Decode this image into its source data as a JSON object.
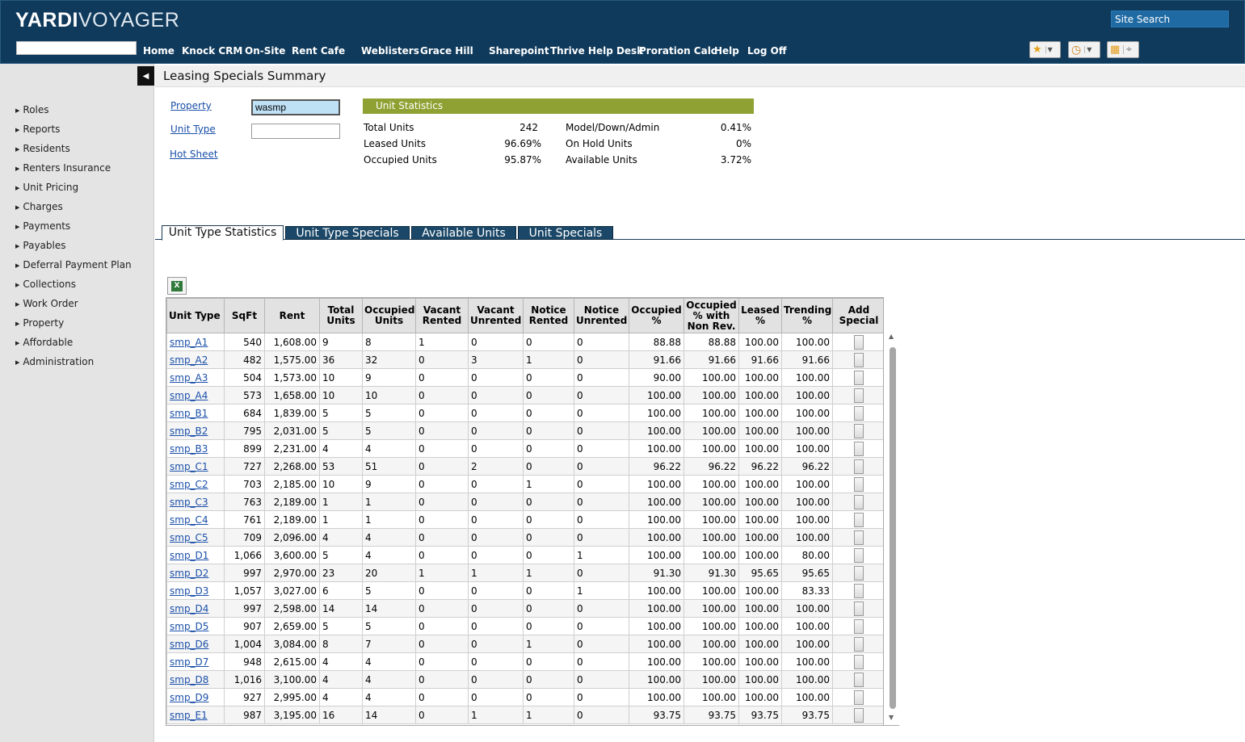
{
  "header": {
    "logo_bold": "YARDI",
    "logo_rest": "VOYAGER",
    "site_search": "Site Search",
    "nav": [
      "Home",
      "Knock CRM",
      "On-Site",
      "Rent Cafe",
      "Weblisters",
      "Grace Hill",
      "Sharepoint",
      "Thrive Help Desk",
      "Proration Calc",
      "Help",
      "Log Off"
    ]
  },
  "sidebar": {
    "items": [
      "Roles",
      "Reports",
      "Residents",
      "Renters Insurance",
      "Unit Pricing",
      "Charges",
      "Payments",
      "Payables",
      "Deferral Payment Plan",
      "Collections",
      "Work Order",
      "Property",
      "Affordable",
      "Administration"
    ]
  },
  "page": {
    "title": "Leasing Specials Summary"
  },
  "form": {
    "property_label": "Property",
    "property_value": "wasmp",
    "unit_type_label": "Unit Type",
    "unit_type_value": "",
    "hot_sheet_label": "Hot Sheet"
  },
  "unit_stats": {
    "heading": "Unit Statistics",
    "left": [
      {
        "label": "Total Units",
        "value": "242"
      },
      {
        "label": "Leased Units",
        "value": "96.69%"
      },
      {
        "label": "Occupied Units",
        "value": "95.87%"
      }
    ],
    "right": [
      {
        "label": "Model/Down/Admin",
        "value": "0.41%"
      },
      {
        "label": "On Hold Units",
        "value": "0%"
      },
      {
        "label": "Available Units",
        "value": "3.72%"
      }
    ]
  },
  "tabs": [
    "Unit Type Statistics",
    "Unit Type Specials",
    "Available Units",
    "Unit Specials"
  ],
  "active_tab": 0,
  "table": {
    "columns": [
      "Unit Type",
      "SqFt",
      "Rent",
      "Total Units",
      "Occupied Units",
      "Vacant Rented",
      "Vacant Unrented",
      "Notice Rented",
      "Notice Unrented",
      "Occupied %",
      "Occupied % with Non Rev.",
      "Leased %",
      "Trending %",
      "Add Special"
    ],
    "rows": [
      [
        "smp_A1",
        "540",
        "1,608.00",
        "9",
        "8",
        "1",
        "0",
        "0",
        "0",
        "88.88",
        "88.88",
        "100.00",
        "100.00"
      ],
      [
        "smp_A2",
        "482",
        "1,575.00",
        "36",
        "32",
        "0",
        "3",
        "1",
        "0",
        "91.66",
        "91.66",
        "91.66",
        "91.66"
      ],
      [
        "smp_A3",
        "504",
        "1,573.00",
        "10",
        "9",
        "0",
        "0",
        "0",
        "0",
        "90.00",
        "100.00",
        "100.00",
        "100.00"
      ],
      [
        "smp_A4",
        "573",
        "1,658.00",
        "10",
        "10",
        "0",
        "0",
        "0",
        "0",
        "100.00",
        "100.00",
        "100.00",
        "100.00"
      ],
      [
        "smp_B1",
        "684",
        "1,839.00",
        "5",
        "5",
        "0",
        "0",
        "0",
        "0",
        "100.00",
        "100.00",
        "100.00",
        "100.00"
      ],
      [
        "smp_B2",
        "795",
        "2,031.00",
        "5",
        "5",
        "0",
        "0",
        "0",
        "0",
        "100.00",
        "100.00",
        "100.00",
        "100.00"
      ],
      [
        "smp_B3",
        "899",
        "2,231.00",
        "4",
        "4",
        "0",
        "0",
        "0",
        "0",
        "100.00",
        "100.00",
        "100.00",
        "100.00"
      ],
      [
        "smp_C1",
        "727",
        "2,268.00",
        "53",
        "51",
        "0",
        "2",
        "0",
        "0",
        "96.22",
        "96.22",
        "96.22",
        "96.22"
      ],
      [
        "smp_C2",
        "703",
        "2,185.00",
        "10",
        "9",
        "0",
        "0",
        "1",
        "0",
        "100.00",
        "100.00",
        "100.00",
        "100.00"
      ],
      [
        "smp_C3",
        "763",
        "2,189.00",
        "1",
        "1",
        "0",
        "0",
        "0",
        "0",
        "100.00",
        "100.00",
        "100.00",
        "100.00"
      ],
      [
        "smp_C4",
        "761",
        "2,189.00",
        "1",
        "1",
        "0",
        "0",
        "0",
        "0",
        "100.00",
        "100.00",
        "100.00",
        "100.00"
      ],
      [
        "smp_C5",
        "709",
        "2,096.00",
        "4",
        "4",
        "0",
        "0",
        "0",
        "0",
        "100.00",
        "100.00",
        "100.00",
        "100.00"
      ],
      [
        "smp_D1",
        "1,066",
        "3,600.00",
        "5",
        "4",
        "0",
        "0",
        "0",
        "1",
        "100.00",
        "100.00",
        "100.00",
        "80.00"
      ],
      [
        "smp_D2",
        "997",
        "2,970.00",
        "23",
        "20",
        "1",
        "1",
        "1",
        "0",
        "91.30",
        "91.30",
        "95.65",
        "95.65"
      ],
      [
        "smp_D3",
        "1,057",
        "3,027.00",
        "6",
        "5",
        "0",
        "0",
        "0",
        "1",
        "100.00",
        "100.00",
        "100.00",
        "83.33"
      ],
      [
        "smp_D4",
        "997",
        "2,598.00",
        "14",
        "14",
        "0",
        "0",
        "0",
        "0",
        "100.00",
        "100.00",
        "100.00",
        "100.00"
      ],
      [
        "smp_D5",
        "907",
        "2,659.00",
        "5",
        "5",
        "0",
        "0",
        "0",
        "0",
        "100.00",
        "100.00",
        "100.00",
        "100.00"
      ],
      [
        "smp_D6",
        "1,004",
        "3,084.00",
        "8",
        "7",
        "0",
        "0",
        "1",
        "0",
        "100.00",
        "100.00",
        "100.00",
        "100.00"
      ],
      [
        "smp_D7",
        "948",
        "2,615.00",
        "4",
        "4",
        "0",
        "0",
        "0",
        "0",
        "100.00",
        "100.00",
        "100.00",
        "100.00"
      ],
      [
        "smp_D8",
        "1,016",
        "3,100.00",
        "4",
        "4",
        "0",
        "0",
        "0",
        "0",
        "100.00",
        "100.00",
        "100.00",
        "100.00"
      ],
      [
        "smp_D9",
        "927",
        "2,995.00",
        "4",
        "4",
        "0",
        "0",
        "0",
        "0",
        "100.00",
        "100.00",
        "100.00",
        "100.00"
      ],
      [
        "smp_E1",
        "987",
        "3,195.00",
        "16",
        "14",
        "0",
        "1",
        "1",
        "0",
        "93.75",
        "93.75",
        "93.75",
        "93.75"
      ]
    ]
  },
  "colors": {
    "header_bg": "#0f3a5c",
    "stats_header": "#8fa132",
    "tab_bg": "#1b4868",
    "link": "#1a4fa8"
  },
  "icons": [
    "star-icon",
    "clock-icon",
    "grid-icon",
    "excel-export-icon",
    "triangle-left-icon"
  ]
}
